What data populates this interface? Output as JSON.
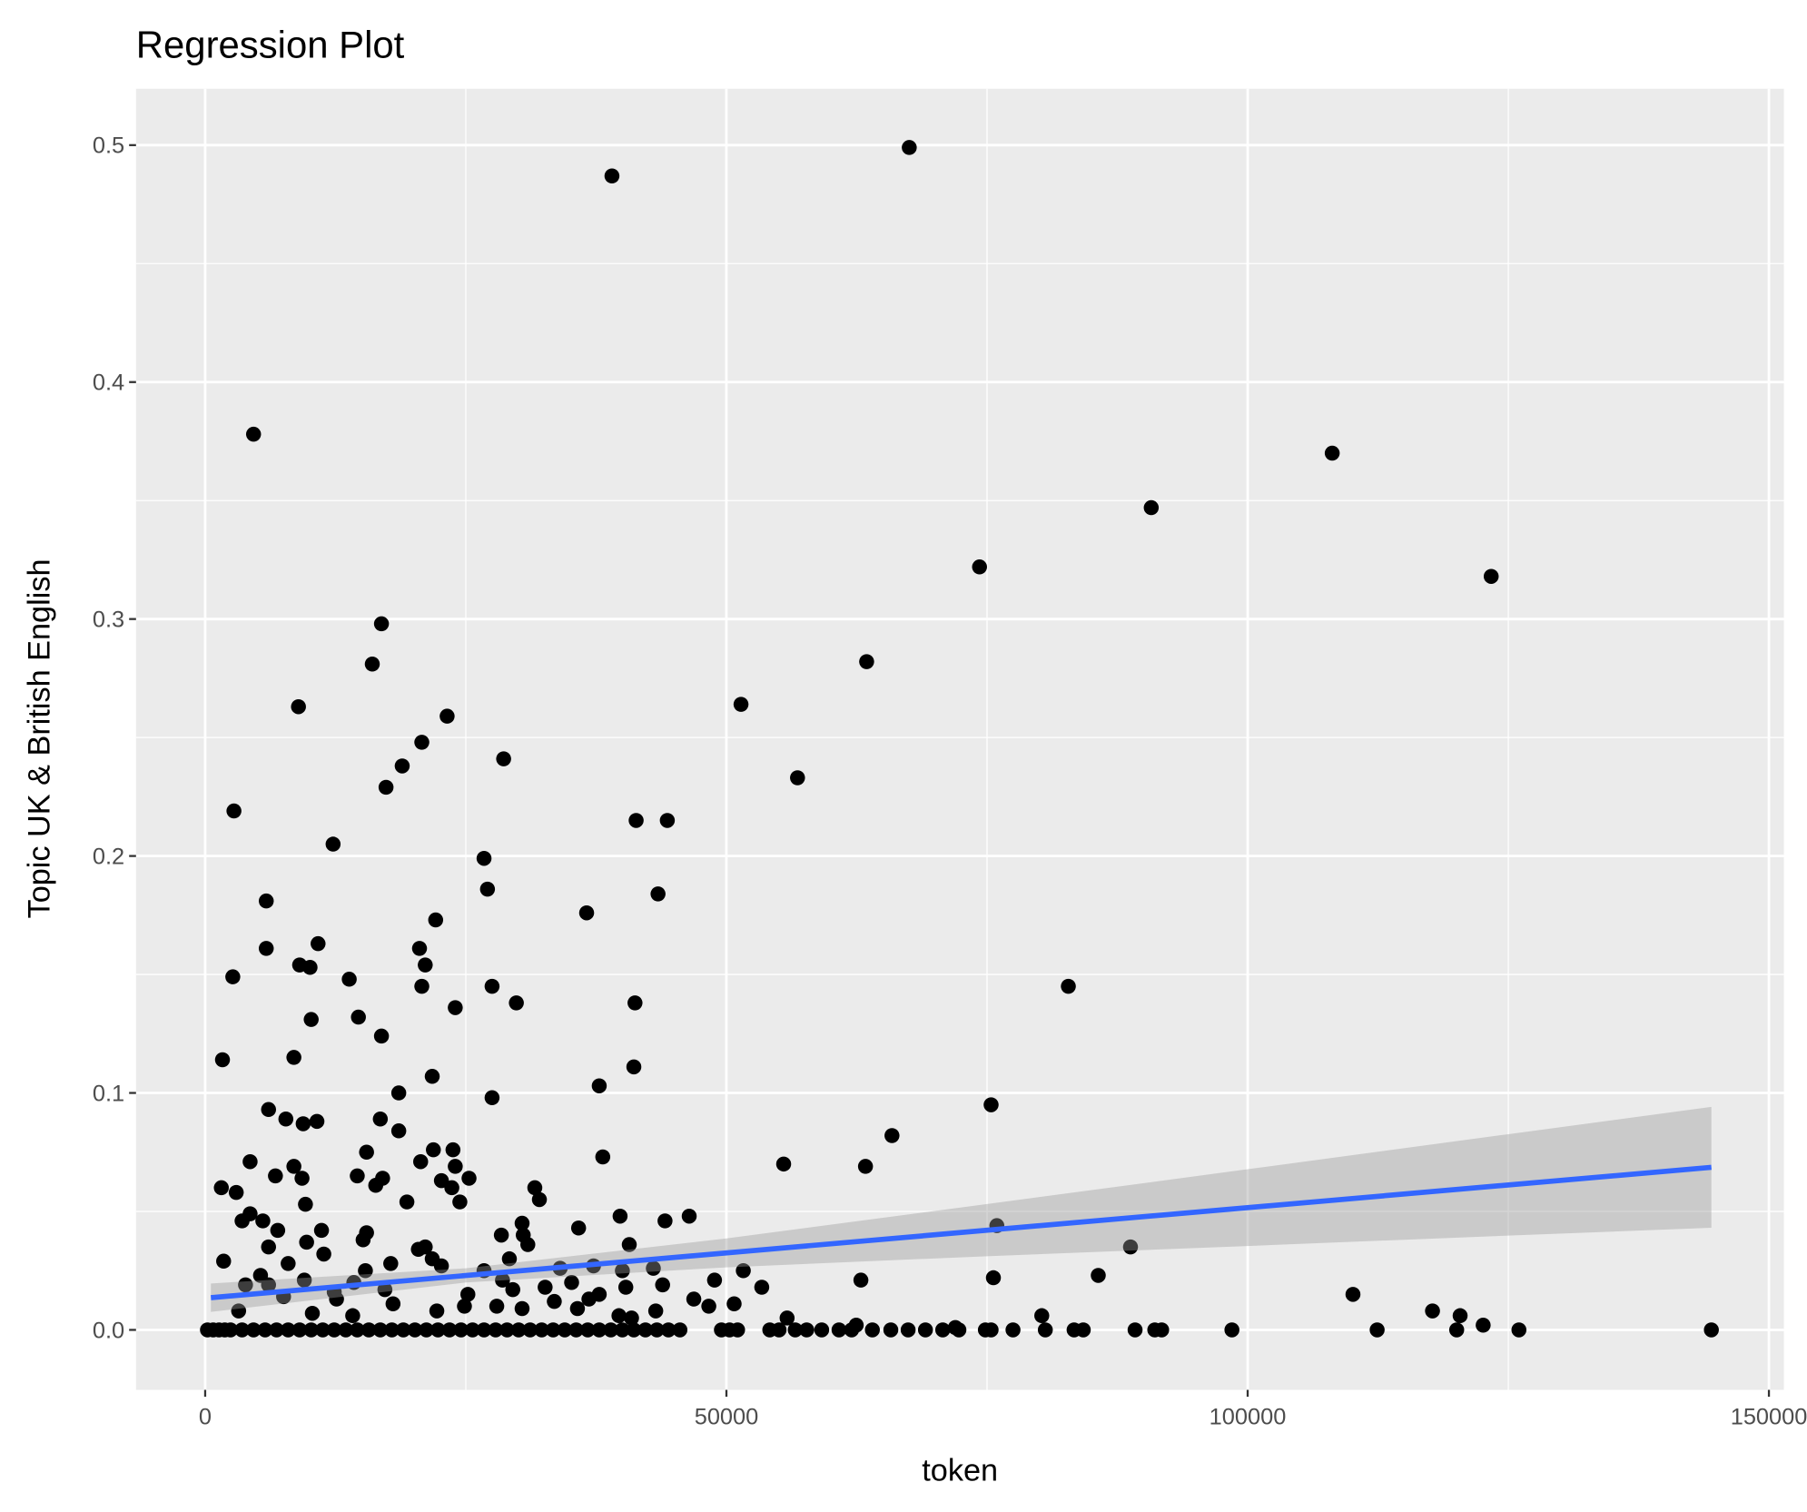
{
  "chart_data": {
    "type": "scatter",
    "title": "Regression Plot",
    "x_label": "token",
    "y_label": "Topic UK & British English",
    "xlim": [
      -6632,
      151437
    ],
    "ylim": [
      -0.0253,
      0.5238
    ],
    "xticks": [
      0,
      50000,
      100000,
      150000
    ],
    "yticks": [
      {
        "value": 0,
        "label": "0.0"
      },
      0.1,
      0.2,
      0.3,
      0.4,
      0.5
    ],
    "x_minor_grid": [
      25000,
      75000,
      125000
    ],
    "y_minor_grid": [
      0.05,
      0.15,
      0.25,
      0.35,
      0.45
    ],
    "grid": true,
    "point_color": "#000000",
    "points": [
      [
        67540,
        0.499
      ],
      [
        39020,
        0.487
      ],
      [
        4640,
        0.378
      ],
      [
        108110,
        0.37
      ],
      [
        90750,
        0.347
      ],
      [
        74280,
        0.322
      ],
      [
        123360,
        0.318
      ],
      [
        16910,
        0.298
      ],
      [
        16030,
        0.281
      ],
      [
        63450,
        0.282
      ],
      [
        51400,
        0.264
      ],
      [
        8950,
        0.263
      ],
      [
        23210,
        0.259
      ],
      [
        20780,
        0.248
      ],
      [
        28630,
        0.241
      ],
      [
        18900,
        0.238
      ],
      [
        56820,
        0.233
      ],
      [
        17350,
        0.229
      ],
      [
        2760,
        0.219
      ],
      [
        41340,
        0.215
      ],
      [
        44330,
        0.215
      ],
      [
        12270,
        0.205
      ],
      [
        26750,
        0.199
      ],
      [
        27080,
        0.186
      ],
      [
        43440,
        0.184
      ],
      [
        5860,
        0.181
      ],
      [
        36590,
        0.176
      ],
      [
        22110,
        0.173
      ],
      [
        10830,
        0.163
      ],
      [
        5860,
        0.161
      ],
      [
        20560,
        0.161
      ],
      [
        9060,
        0.154
      ],
      [
        10060,
        0.153
      ],
      [
        21110,
        0.154
      ],
      [
        2650,
        0.149
      ],
      [
        13820,
        0.148
      ],
      [
        27520,
        0.145
      ],
      [
        20780,
        0.145
      ],
      [
        82800,
        0.145
      ],
      [
        29850,
        0.138
      ],
      [
        41230,
        0.138
      ],
      [
        23990,
        0.136
      ],
      [
        14700,
        0.132
      ],
      [
        10170,
        0.131
      ],
      [
        16910,
        0.124
      ],
      [
        1660,
        0.114
      ],
      [
        8510,
        0.115
      ],
      [
        41120,
        0.111
      ],
      [
        21780,
        0.107
      ],
      [
        37800,
        0.103
      ],
      [
        18570,
        0.1
      ],
      [
        27520,
        0.098
      ],
      [
        75390,
        0.095
      ],
      [
        6080,
        0.093
      ],
      [
        7740,
        0.089
      ],
      [
        9400,
        0.087
      ],
      [
        10720,
        0.088
      ],
      [
        16800,
        0.089
      ],
      [
        18570,
        0.084
      ],
      [
        65880,
        0.082
      ],
      [
        23770,
        0.076
      ],
      [
        21890,
        0.076
      ],
      [
        15480,
        0.075
      ],
      [
        38140,
        0.073
      ],
      [
        4310,
        0.071
      ],
      [
        55490,
        0.07
      ],
      [
        20670,
        0.071
      ],
      [
        8510,
        0.069
      ],
      [
        63340,
        0.069
      ],
      [
        23990,
        0.069
      ],
      [
        6740,
        0.065
      ],
      [
        14590,
        0.065
      ],
      [
        9290,
        0.064
      ],
      [
        17020,
        0.064
      ],
      [
        25310,
        0.064
      ],
      [
        22660,
        0.063
      ],
      [
        16360,
        0.061
      ],
      [
        1550,
        0.06
      ],
      [
        31620,
        0.06
      ],
      [
        23660,
        0.06
      ],
      [
        2980,
        0.058
      ],
      [
        32060,
        0.055
      ],
      [
        24430,
        0.054
      ],
      [
        19350,
        0.054
      ],
      [
        9620,
        0.053
      ],
      [
        39800,
        0.048
      ],
      [
        46430,
        0.048
      ],
      [
        44110,
        0.046
      ],
      [
        4310,
        0.049
      ],
      [
        3540,
        0.046
      ],
      [
        5530,
        0.046
      ],
      [
        30400,
        0.045
      ],
      [
        11160,
        0.042
      ],
      [
        35820,
        0.043
      ],
      [
        75940,
        0.044
      ],
      [
        6960,
        0.042
      ],
      [
        15480,
        0.041
      ],
      [
        15150,
        0.038
      ],
      [
        9730,
        0.037
      ],
      [
        30510,
        0.04
      ],
      [
        28410,
        0.04
      ],
      [
        40680,
        0.036
      ],
      [
        30950,
        0.036
      ],
      [
        88760,
        0.035
      ],
      [
        6080,
        0.035
      ],
      [
        21110,
        0.035
      ],
      [
        20450,
        0.034
      ],
      [
        11380,
        0.032
      ],
      [
        29180,
        0.03
      ],
      [
        21780,
        0.03
      ],
      [
        1770,
        0.029
      ],
      [
        7960,
        0.028
      ],
      [
        17800,
        0.028
      ],
      [
        22660,
        0.027
      ],
      [
        37250,
        0.027
      ],
      [
        34050,
        0.026
      ],
      [
        42990,
        0.026
      ],
      [
        26750,
        0.025
      ],
      [
        15370,
        0.025
      ],
      [
        51620,
        0.025
      ],
      [
        40020,
        0.025
      ],
      [
        5310,
        0.023
      ],
      [
        85670,
        0.023
      ],
      [
        75610,
        0.022
      ],
      [
        62900,
        0.021
      ],
      [
        48860,
        0.021
      ],
      [
        28520,
        0.021
      ],
      [
        9510,
        0.021
      ],
      [
        35150,
        0.02
      ],
      [
        3870,
        0.019
      ],
      [
        14260,
        0.02
      ],
      [
        43880,
        0.019
      ],
      [
        32610,
        0.018
      ],
      [
        53390,
        0.018
      ],
      [
        40350,
        0.018
      ],
      [
        6080,
        0.019
      ],
      [
        29510,
        0.017
      ],
      [
        17240,
        0.017
      ],
      [
        12380,
        0.016
      ],
      [
        110100,
        0.015
      ],
      [
        37800,
        0.015
      ],
      [
        25200,
        0.015
      ],
      [
        7520,
        0.014
      ],
      [
        12600,
        0.013
      ],
      [
        46870,
        0.013
      ],
      [
        36810,
        0.013
      ],
      [
        33490,
        0.012
      ],
      [
        18020,
        0.011
      ],
      [
        50740,
        0.011
      ],
      [
        48310,
        0.01
      ],
      [
        27970,
        0.01
      ],
      [
        24870,
        0.01
      ],
      [
        30400,
        0.009
      ],
      [
        35710,
        0.009
      ],
      [
        117730,
        0.008
      ],
      [
        43220,
        0.008
      ],
      [
        3210,
        0.008
      ],
      [
        22220,
        0.008
      ],
      [
        120380,
        0.006
      ],
      [
        10280,
        0.007
      ],
      [
        39690,
        0.006
      ],
      [
        14150,
        0.006
      ],
      [
        80250,
        0.006
      ],
      [
        55820,
        0.005
      ],
      [
        40900,
        0.005
      ],
      [
        122590,
        0.002
      ],
      [
        62450,
        0.002
      ],
      [
        71960,
        0.001
      ],
      [
        220,
        0
      ],
      [
        770,
        0
      ],
      [
        1330,
        0
      ],
      [
        1880,
        0
      ],
      [
        2430,
        0
      ],
      [
        3540,
        0
      ],
      [
        4640,
        0
      ],
      [
        5750,
        0
      ],
      [
        6850,
        0
      ],
      [
        7960,
        0
      ],
      [
        9060,
        0
      ],
      [
        10170,
        0
      ],
      [
        11280,
        0
      ],
      [
        12380,
        0
      ],
      [
        13490,
        0
      ],
      [
        14590,
        0
      ],
      [
        15700,
        0
      ],
      [
        16800,
        0
      ],
      [
        17910,
        0
      ],
      [
        19010,
        0
      ],
      [
        20120,
        0
      ],
      [
        21220,
        0
      ],
      [
        22330,
        0
      ],
      [
        23440,
        0
      ],
      [
        24540,
        0
      ],
      [
        25650,
        0
      ],
      [
        26750,
        0
      ],
      [
        27860,
        0
      ],
      [
        28960,
        0
      ],
      [
        30070,
        0
      ],
      [
        31170,
        0
      ],
      [
        32280,
        0
      ],
      [
        33380,
        0
      ],
      [
        34490,
        0
      ],
      [
        35590,
        0
      ],
      [
        36700,
        0
      ],
      [
        37800,
        0
      ],
      [
        38910,
        0
      ],
      [
        40020,
        0
      ],
      [
        41120,
        0
      ],
      [
        42230,
        0
      ],
      [
        43330,
        0
      ],
      [
        44440,
        0
      ],
      [
        45540,
        0
      ],
      [
        49520,
        0
      ],
      [
        50300,
        0
      ],
      [
        51070,
        0
      ],
      [
        54160,
        0
      ],
      [
        55050,
        0
      ],
      [
        56600,
        0
      ],
      [
        57700,
        0
      ],
      [
        59140,
        0
      ],
      [
        60800,
        0
      ],
      [
        62010,
        0
      ],
      [
        64000,
        0
      ],
      [
        65770,
        0
      ],
      [
        67430,
        0
      ],
      [
        69090,
        0
      ],
      [
        70750,
        0
      ],
      [
        72300,
        0
      ],
      [
        74840,
        0
      ],
      [
        75390,
        0
      ],
      [
        77490,
        0
      ],
      [
        80590,
        0
      ],
      [
        83350,
        0
      ],
      [
        84230,
        0
      ],
      [
        89200,
        0
      ],
      [
        91090,
        0
      ],
      [
        91750,
        0
      ],
      [
        98490,
        0
      ],
      [
        112420,
        0
      ],
      [
        120050,
        0
      ],
      [
        126020,
        0
      ],
      [
        144480,
        0
      ]
    ],
    "fit": {
      "color": "#3366FF",
      "x": [
        550,
        144480
      ],
      "y": [
        0.0136,
        0.0686
      ]
    },
    "band": {
      "color": "#999999",
      "x": [
        550,
        25000,
        50000,
        75000,
        100000,
        125000,
        144480
      ],
      "lower": [
        0.0076,
        0.02,
        0.0264,
        0.0311,
        0.0354,
        0.0398,
        0.0431
      ],
      "upper": [
        0.0196,
        0.026,
        0.0386,
        0.0531,
        0.0678,
        0.0826,
        0.0941
      ]
    }
  }
}
